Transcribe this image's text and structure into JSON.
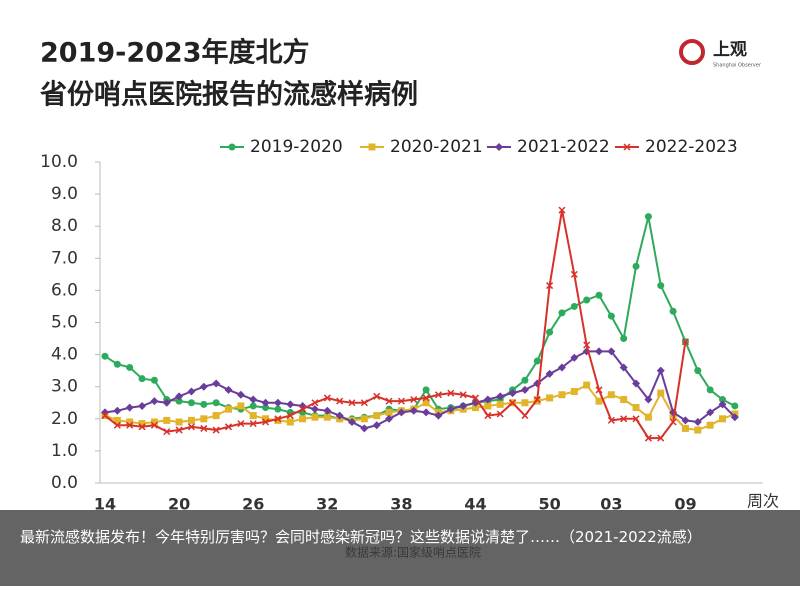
{
  "brand": {
    "name": "上观",
    "sub": "Shanghai Observer"
  },
  "caption": "最新流感数据发布！今年特别厉害吗？会同时感染新冠吗？这些数据说清楚了……（2021-2022流感）",
  "chart_data": {
    "type": "line",
    "title": "2019-2023年度北方省份哨点医院报告的流感样病例",
    "x_label": "周次",
    "source": "数据来源:国家级哨点医院",
    "categories": [
      "14",
      null,
      null,
      null,
      null,
      null,
      "20",
      null,
      null,
      null,
      null,
      null,
      "26",
      null,
      null,
      null,
      null,
      null,
      "32",
      null,
      null,
      null,
      null,
      null,
      "38",
      null,
      null,
      null,
      null,
      null,
      "44",
      null,
      null,
      null,
      null,
      null,
      "50",
      null,
      null,
      null,
      null,
      "03",
      null,
      null,
      null,
      null,
      null,
      "09",
      null,
      null,
      null,
      null
    ],
    "ylim": [
      0,
      10
    ],
    "yticks": [
      {
        "value": 0,
        "label": "0.0"
      },
      {
        "value": 1,
        "label": "1.0"
      },
      {
        "value": 2,
        "label": "2.0"
      },
      {
        "value": 3,
        "label": "3.0"
      },
      {
        "value": 4,
        "label": "4.0"
      },
      {
        "value": 5,
        "label": "5.0"
      },
      {
        "value": 6,
        "label": "6.0"
      },
      {
        "value": 7,
        "label": "7.0"
      },
      {
        "value": 8,
        "label": "8.0"
      },
      {
        "value": 9,
        "label": "9.0"
      },
      {
        "value": 10,
        "label": "10.0"
      }
    ],
    "grid": false,
    "legend": "top",
    "series": [
      {
        "name": "2019-2020",
        "color": "#2eaa5c",
        "marker": "circle",
        "values": [
          3.95,
          3.7,
          3.6,
          3.25,
          3.2,
          2.6,
          2.55,
          2.5,
          2.45,
          2.5,
          2.35,
          2.3,
          2.4,
          2.35,
          2.3,
          2.2,
          2.2,
          2.1,
          2.1,
          2.0,
          2.0,
          2.05,
          2.1,
          2.3,
          2.25,
          2.3,
          2.9,
          2.3,
          2.35,
          2.4,
          2.5,
          2.55,
          2.6,
          2.9,
          3.2,
          3.8,
          4.7,
          5.3,
          5.5,
          5.7,
          5.85,
          5.2,
          4.5,
          6.75,
          8.3,
          6.15,
          5.35,
          4.4,
          3.5,
          2.9,
          2.6,
          2.4
        ]
      },
      {
        "name": "2020-2021",
        "color": "#e2b42a",
        "marker": "square",
        "values": [
          2.1,
          1.95,
          1.9,
          1.85,
          1.9,
          1.95,
          1.9,
          1.95,
          2.0,
          2.1,
          2.3,
          2.4,
          2.1,
          2.0,
          1.95,
          1.9,
          2.0,
          2.05,
          2.05,
          2.0,
          1.95,
          2.0,
          2.1,
          2.2,
          2.25,
          2.3,
          2.5,
          2.2,
          2.25,
          2.3,
          2.35,
          2.4,
          2.45,
          2.5,
          2.5,
          2.55,
          2.65,
          2.75,
          2.85,
          3.05,
          2.55,
          2.75,
          2.6,
          2.35,
          2.05,
          2.8,
          2.1,
          1.7,
          1.65,
          1.8,
          2.0,
          2.15
        ]
      },
      {
        "name": "2021-2022",
        "color": "#6a3d9a",
        "marker": "diamond",
        "values": [
          2.2,
          2.25,
          2.35,
          2.4,
          2.55,
          2.5,
          2.7,
          2.85,
          3.0,
          3.1,
          2.9,
          2.75,
          2.6,
          2.5,
          2.5,
          2.45,
          2.4,
          2.3,
          2.25,
          2.1,
          1.9,
          1.7,
          1.8,
          2.0,
          2.2,
          2.25,
          2.2,
          2.1,
          2.3,
          2.4,
          2.5,
          2.6,
          2.7,
          2.8,
          2.9,
          3.1,
          3.4,
          3.6,
          3.9,
          4.1,
          4.1,
          4.1,
          3.6,
          3.1,
          2.6,
          3.5,
          2.2,
          1.95,
          1.9,
          2.2,
          2.45,
          2.05
        ]
      },
      {
        "name": "2022-2023",
        "color": "#d7312a",
        "marker": "cross",
        "values": [
          2.1,
          1.8,
          1.8,
          1.75,
          1.8,
          1.6,
          1.65,
          1.75,
          1.7,
          1.65,
          1.75,
          1.85,
          1.85,
          1.9,
          2.0,
          2.1,
          2.3,
          2.5,
          2.65,
          2.55,
          2.5,
          2.5,
          2.7,
          2.55,
          2.55,
          2.6,
          2.65,
          2.75,
          2.8,
          2.75,
          2.65,
          2.1,
          2.15,
          2.5,
          2.1,
          2.6,
          6.15,
          8.5,
          6.5,
          4.3,
          2.9,
          1.95,
          2.0,
          2.0,
          1.4,
          1.4,
          1.9,
          4.4,
          null,
          null,
          null,
          null
        ]
      }
    ]
  }
}
